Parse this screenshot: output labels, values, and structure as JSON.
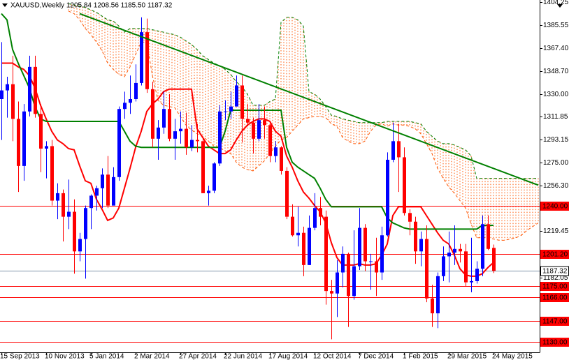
{
  "chart_data": {
    "type": "candlestick",
    "title": "XAUUSD,Weekly 1205.84 1208.56 1185.50 1187.32",
    "categories": [
      "15 Sep 2013",
      null,
      null,
      null,
      null,
      null,
      null,
      null,
      "10 Nov 2013",
      null,
      null,
      null,
      null,
      null,
      null,
      null,
      "5 Jan 2014",
      null,
      null,
      null,
      null,
      null,
      null,
      null,
      "2 Mar 2014",
      null,
      null,
      null,
      null,
      null,
      null,
      null,
      "27 Apr 2014",
      null,
      null,
      null,
      null,
      null,
      null,
      null,
      "22 Jun 2014",
      null,
      null,
      null,
      null,
      null,
      null,
      null,
      "17 Aug 2014",
      null,
      null,
      null,
      null,
      null,
      null,
      null,
      "12 Oct 2014",
      null,
      null,
      null,
      null,
      null,
      null,
      null,
      "7 Dec 2014",
      null,
      null,
      null,
      null,
      null,
      null,
      null,
      "1 Feb 2015",
      null,
      null,
      null,
      null,
      null,
      null,
      null,
      "29 Mar 2015",
      null,
      null,
      null,
      null,
      null,
      null,
      null,
      "24 May 2015",
      null,
      null,
      null,
      null,
      null,
      null,
      null,
      null
    ],
    "open": [
      1326,
      1333,
      1338,
      1310,
      1272,
      1316,
      1352,
      1314,
      1286,
      1288,
      1244,
      1250,
      1231,
      1235,
      1203,
      1213,
      1238,
      1248,
      1254,
      1265,
      1240,
      1263,
      1318,
      1323,
      1326,
      1339,
      1380,
      1334,
      1294,
      1303,
      1318,
      1294,
      1300,
      1302,
      1287,
      1293,
      1292,
      1250,
      1252,
      1274,
      1316,
      1316,
      1320,
      1337,
      1310,
      1307,
      1294,
      1309,
      1305,
      1280,
      1287,
      1268,
      1231,
      1216,
      1218,
      1192,
      1222,
      1238,
      1231,
      1171,
      1169,
      1186,
      1201,
      1167,
      1191,
      1222,
      1195,
      1195,
      1186,
      1216,
      1277,
      1292,
      1279,
      1234,
      1227,
      1203,
      1213,
      1165,
      1153,
      1183,
      1199,
      1202,
      1205,
      1203,
      1178,
      1179,
      1189,
      1225,
      1205.84,
      null,
      null,
      null,
      null,
      null,
      null,
      null,
      null
    ],
    "high": [
      1372,
      1344,
      1361,
      1324,
      1322,
      1361,
      1361,
      1322,
      1292,
      1293,
      1258,
      1253,
      1261,
      1245,
      1218,
      1240,
      1249,
      1256,
      1270,
      1280,
      1271,
      1320,
      1332,
      1345,
      1354,
      1392,
      1391,
      1340,
      1309,
      1332,
      1330,
      1310,
      1316,
      1315,
      1305,
      1306,
      1294,
      1256,
      1275,
      1321,
      1325,
      1332,
      1345,
      1345,
      1322,
      1311,
      1322,
      1320,
      1306,
      1292,
      1288,
      1271,
      1241,
      1239,
      1223,
      1232,
      1250,
      1247,
      1236,
      1180,
      1196,
      1207,
      1202,
      1220,
      1238,
      1225,
      1201,
      1214,
      1223,
      1283,
      1307,
      1306,
      1287,
      1237,
      1231,
      1219,
      1224,
      1176,
      1186,
      1207,
      1219,
      1224,
      1209,
      1209,
      1214,
      1195,
      1232,
      1232,
      1208.56,
      null,
      null,
      null,
      null,
      null,
      null,
      null,
      null
    ],
    "low": [
      1293,
      1311,
      1292,
      1251,
      1260,
      1312,
      1311,
      1267,
      1262,
      1240,
      1229,
      1211,
      1221,
      1185,
      1195,
      1181,
      1221,
      1236,
      1238,
      1238,
      1241,
      1260,
      1310,
      1314,
      1324,
      1337,
      1331,
      1287,
      1277,
      1298,
      1292,
      1277,
      1290,
      1281,
      1284,
      1283,
      1250,
      1240,
      1250,
      1272,
      1309,
      1310,
      1320,
      1291,
      1304,
      1282,
      1292,
      1294,
      1275,
      1275,
      1265,
      1229,
      1215,
      1207,
      1183,
      1192,
      1220,
      1224,
      1160,
      1132,
      1150,
      1174,
      1142,
      1164,
      1188,
      1187,
      1172,
      1167,
      1180,
      1215,
      1275,
      1251,
      1232,
      1216,
      1193,
      1191,
      1162,
      1142,
      1141,
      1179,
      1178,
      1192,
      1194,
      1175,
      1170,
      1177,
      1183,
      1204,
      1185.5,
      null,
      null,
      null,
      null,
      null,
      null,
      null,
      null
    ],
    "close": [
      1333,
      1338,
      1310,
      1272,
      1316,
      1352,
      1314,
      1286,
      1288,
      1244,
      1250,
      1231,
      1235,
      1203,
      1213,
      1238,
      1248,
      1254,
      1265,
      1240,
      1263,
      1318,
      1323,
      1326,
      1339,
      1380,
      1334,
      1294,
      1303,
      1318,
      1294,
      1300,
      1302,
      1287,
      1293,
      1292,
      1250,
      1252,
      1274,
      1316,
      1316,
      1320,
      1337,
      1310,
      1307,
      1294,
      1309,
      1305,
      1280,
      1287,
      1268,
      1231,
      1216,
      1218,
      1192,
      1222,
      1238,
      1231,
      1171,
      1169,
      1186,
      1201,
      1167,
      1191,
      1222,
      1195,
      1195,
      1186,
      1216,
      1277,
      1292,
      1279,
      1234,
      1227,
      1203,
      1213,
      1165,
      1153,
      1183,
      1199,
      1202,
      1205,
      1203,
      1178,
      1179,
      1189,
      1225,
      1205,
      1187.32,
      null,
      null,
      null,
      null,
      null,
      null,
      null,
      null
    ],
    "up_color": "#0000ff",
    "down_color": "#ff0000",
    "lines": [
      {
        "color": "#ff0000",
        "values": [
          1355,
          1355,
          1355,
          1352,
          1350,
          1345,
          1335,
          1321,
          1310,
          1300,
          1293,
          1290,
          1286,
          1285,
          1272,
          1260,
          1258,
          1245,
          1237,
          1228,
          1230,
          1238,
          1254,
          1270,
          1287,
          1300,
          1316,
          1322,
          1326,
          1332,
          1334,
          1334,
          1334,
          1334,
          1334,
          1302,
          1295,
          1288,
          1285,
          1282,
          1282,
          1285,
          1293,
          1300,
          1305,
          1308,
          1310,
          1310,
          1308,
          1300,
          1296,
          1280,
          1271,
          1260,
          1251,
          1246,
          1240,
          1235,
          1226,
          1210,
          1198,
          1192,
          1192,
          1192,
          1193,
          1192,
          1192,
          1193,
          1200,
          1209,
          1232,
          1239,
          1239,
          1239,
          1239,
          1239,
          1232,
          1225,
          1218,
          1212,
          1209,
          1200,
          1189,
          1184,
          1183,
          1183,
          1185,
          1190,
          1194,
          null,
          null,
          null,
          null,
          null,
          null,
          null,
          null
        ]
      },
      {
        "color": "#008000",
        "values": [
          1395,
          1390,
          1366,
          1355,
          1345,
          1335,
          1320,
          1310,
          1308,
          1308,
          1308,
          1308,
          1308,
          1308,
          1308,
          1308,
          1308,
          1308,
          1308,
          1308,
          1308,
          1308,
          1300,
          1292,
          1288,
          1287,
          1287,
          1287,
          1287,
          1287,
          1287,
          1287,
          1287,
          1287,
          1287,
          1287,
          1287,
          1287,
          1287,
          1287,
          1300,
          1317,
          1317,
          1317,
          1317,
          1317,
          1317,
          1317,
          1317,
          1317,
          1317,
          1287,
          1275,
          1271,
          1268,
          1265,
          1262,
          1254,
          1245,
          1239,
          1239,
          1239,
          1239,
          1239,
          1239,
          1239,
          1239,
          1239,
          1239,
          1230,
          1226,
          1224,
          1222,
          1221,
          1221,
          1221,
          1221,
          1221,
          1221,
          1221,
          1221,
          1221,
          1221,
          1221,
          1221,
          1221,
          1224,
          1224,
          1224,
          null,
          null,
          null,
          null,
          null,
          null,
          null,
          null
        ]
      }
    ],
    "cloud": {
      "color": "#ff5500",
      "upper_color": "#008000",
      "lower_color": "#ff5500",
      "upper": [
        null,
        null,
        null,
        null,
        null,
        null,
        null,
        null,
        null,
        null,
        null,
        null,
        1403,
        1402,
        1401,
        1400,
        1398,
        1396,
        1393,
        1390,
        1389,
        1385,
        1380,
        1383,
        1383,
        1383,
        1383,
        1382,
        1381,
        1380,
        1379,
        1378,
        1376,
        1373,
        1370,
        1366,
        1361,
        1358,
        1355,
        1353,
        1350,
        1346,
        1340,
        1336,
        1330,
        1321,
        1321,
        1321,
        1324,
        1326,
        1388,
        1392,
        1392,
        1390,
        1385,
        1332,
        1330,
        1326,
        1320,
        1313,
        1312,
        1310,
        1309,
        1308,
        1307,
        1307,
        1307,
        1307,
        1307,
        1308,
        1308,
        1308,
        1308,
        1308,
        1307,
        1306,
        1300,
        1296,
        1292,
        1290,
        1290,
        1289,
        1287,
        1285,
        1280,
        1262,
        1262,
        1262,
        1262,
        1262,
        1262,
        1262,
        1262,
        1262,
        1262,
        1262,
        1262
      ],
      "lower": [
        null,
        null,
        null,
        null,
        null,
        null,
        null,
        null,
        null,
        null,
        null,
        null,
        1397,
        1395,
        1390,
        1383,
        1378,
        1372,
        1365,
        1355,
        1350,
        1346,
        1344,
        1352,
        1362,
        1372,
        1372,
        1345,
        1325,
        1321,
        1320,
        1319,
        1312,
        1305,
        1301,
        1298,
        1296,
        1292,
        1288,
        1287,
        1284,
        1282,
        1275,
        1271,
        1269,
        1268,
        1272,
        1276,
        1282,
        1288,
        1293,
        1295,
        1300,
        1305,
        1310,
        1311,
        1312,
        1312,
        1311,
        1306,
        1304,
        1295,
        1292,
        1290,
        1290,
        1292,
        1300,
        1305,
        1306,
        1304,
        1306,
        1305,
        1305,
        1304,
        1302,
        1298,
        1290,
        1282,
        1270,
        1262,
        1255,
        1250,
        1244,
        1238,
        1225,
        1214,
        1214,
        1214,
        1213,
        1212,
        1212,
        1213,
        1214,
        1216,
        1220,
        1223,
        1226
      ]
    },
    "trendline": {
      "color": "#008000",
      "x": [
        14,
        96
      ],
      "values": [
        1395,
        1256.5
      ]
    },
    "levels": [
      {
        "value": 1240,
        "label": "1240.00",
        "color": "#ff0000"
      },
      {
        "value": 1201.2,
        "label": "1201.20",
        "color": "#ff0000"
      },
      {
        "value": 1175,
        "label": "1175.00",
        "color": "#ff0000"
      },
      {
        "value": 1166,
        "label": "1166.00",
        "color": "#ff0000"
      },
      {
        "value": 1147,
        "label": "1147.00",
        "color": "#ff0000"
      },
      {
        "value": 1130,
        "label": "1130.00",
        "color": "#ff0000"
      }
    ],
    "last": {
      "value": 1187.32,
      "label": "1187.32",
      "color": "#7f93a8"
    },
    "ylim": [
      1121.5,
      1406
    ],
    "yticks": [
      1404.25,
      1385.55,
      {
        "value": 1367.4,
        "label": "1367.40"
      },
      {
        "value": 1348.7,
        "label": "1348.70"
      },
      {
        "value": 1330,
        "label": "1330.00"
      },
      1311.85,
      1293.15,
      {
        "value": 1275,
        "label": "1275.00"
      },
      {
        "value": 1256.3,
        "label": "1256.30"
      },
      1219.45,
      1182.05
    ]
  }
}
